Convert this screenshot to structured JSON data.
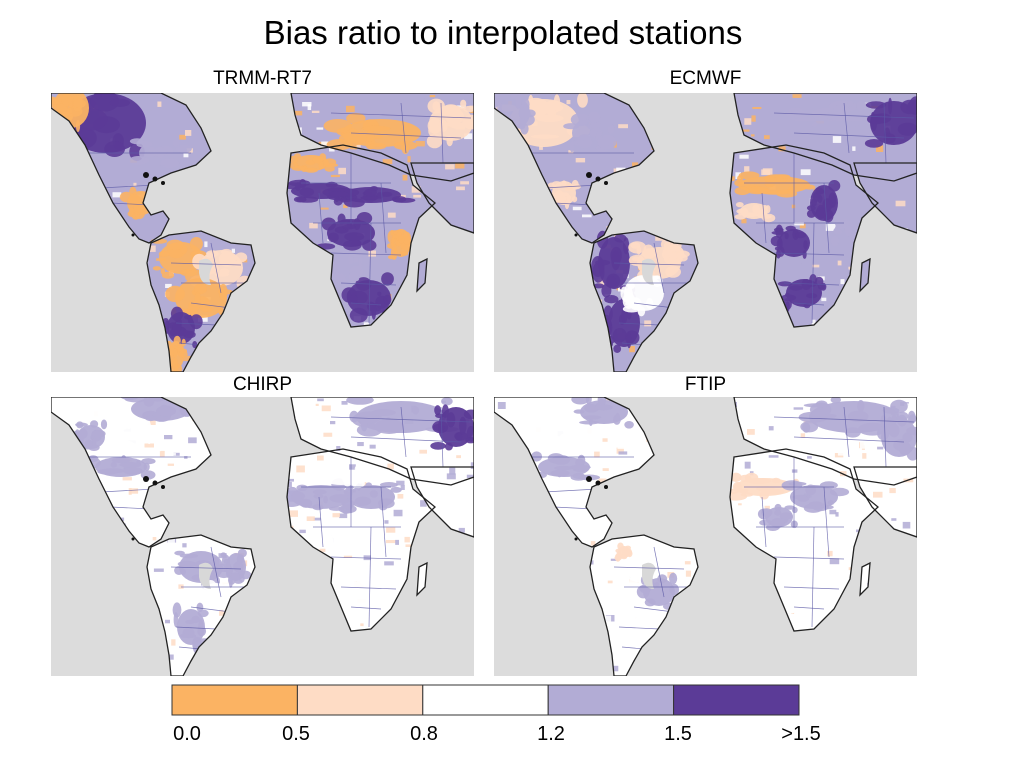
{
  "title": "Bias ratio to interpolated stations",
  "panels": [
    {
      "title": "TRMM-RT7"
    },
    {
      "title": "ECMWF"
    },
    {
      "title": "CHIRP"
    },
    {
      "title": "FTIP"
    }
  ],
  "legend": {
    "bins": [
      {
        "from": "0.0",
        "to": "0.5",
        "color": "#fbb363"
      },
      {
        "from": "0.5",
        "to": "0.8",
        "color": "#fedcc5"
      },
      {
        "from": "0.8",
        "to": "1.2",
        "color": "#ffffff"
      },
      {
        "from": "1.2",
        "to": "1.5",
        "color": "#b2acd5"
      },
      {
        "from": "1.5",
        "to": ">1.5",
        "color": "#5b3b97"
      }
    ],
    "tick_labels": [
      "0.0",
      "0.5",
      "0.8",
      "1.2",
      "1.5",
      ">1.5"
    ]
  },
  "colors": {
    "ocean": "#dcdcdc",
    "coast": "#222222",
    "borders": "#5c5aa6",
    "no_data_land": "#d8d8d8"
  }
}
